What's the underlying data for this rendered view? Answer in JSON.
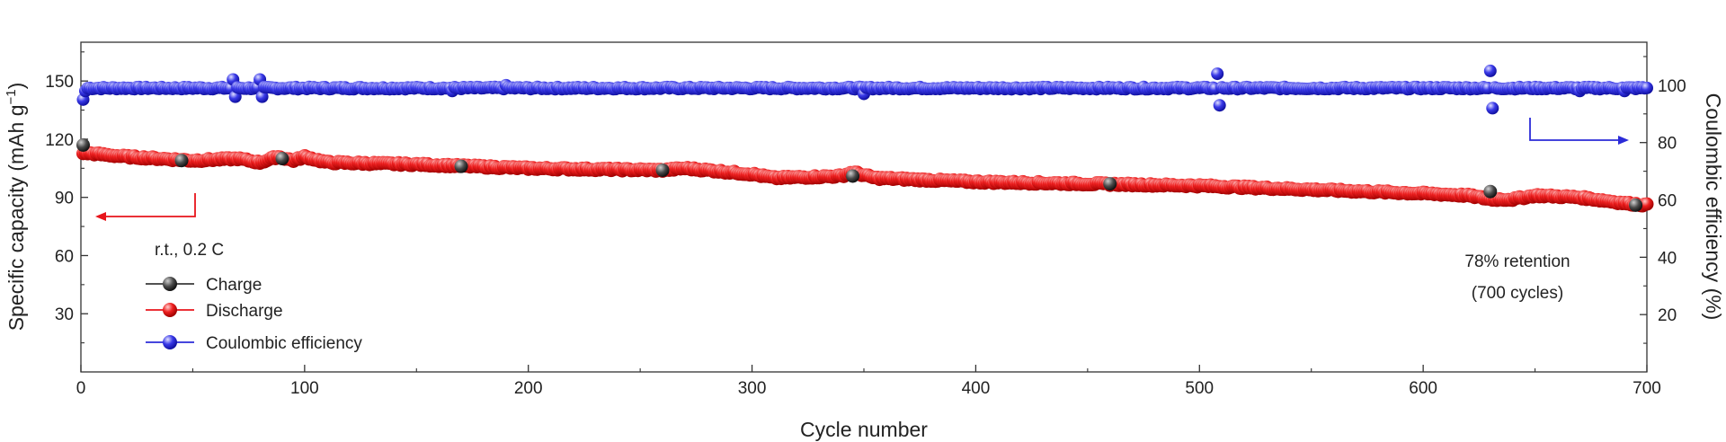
{
  "chart_data": {
    "type": "scatter",
    "xlabel": "Cycle number",
    "ylabel_left_main": "Specific capacity (mAh g",
    "ylabel_left_sup": "−1",
    "ylabel_left_end": ")",
    "ylabel_right": "Coulombic efficiency (%)",
    "xlim": [
      0,
      700
    ],
    "ylim_left": [
      0,
      170
    ],
    "ylim_right": [
      0,
      115
    ],
    "x_ticks": [
      0,
      100,
      200,
      300,
      400,
      500,
      600,
      700
    ],
    "x_tick_labels": [
      "0",
      "100",
      "200",
      "300",
      "400",
      "500",
      "600",
      "700"
    ],
    "y_left_ticks": [
      30,
      60,
      90,
      120,
      150
    ],
    "y_left_tick_labels": [
      "30",
      "60",
      "90",
      "120",
      "150"
    ],
    "y_right_ticks": [
      20,
      40,
      60,
      80,
      100
    ],
    "y_right_tick_labels": [
      "20",
      "40",
      "60",
      "80",
      "100"
    ],
    "condition_label": "r.t., 0.2 C",
    "retention_line1": "78% retention",
    "retention_line2": "(700 cycles)",
    "legend_position": "bottom-left",
    "series": [
      {
        "name": "Charge",
        "color": "#3a3a3a",
        "axis": "left",
        "points": [
          [
            1,
            117
          ],
          [
            45,
            109
          ],
          [
            90,
            110
          ],
          [
            170,
            106
          ],
          [
            260,
            104
          ],
          [
            345,
            101
          ],
          [
            460,
            97
          ],
          [
            630,
            93
          ],
          [
            695,
            86
          ]
        ]
      },
      {
        "name": "Discharge",
        "color": "#e8141b",
        "axis": "left",
        "anchors": [
          [
            1,
            113
          ],
          [
            20,
            111
          ],
          [
            50,
            109
          ],
          [
            70,
            110
          ],
          [
            80,
            108
          ],
          [
            88,
            111
          ],
          [
            95,
            109
          ],
          [
            100,
            111
          ],
          [
            110,
            108
          ],
          [
            150,
            107
          ],
          [
            200,
            105
          ],
          [
            260,
            104
          ],
          [
            270,
            105
          ],
          [
            290,
            103
          ],
          [
            300,
            102
          ],
          [
            310,
            100
          ],
          [
            340,
            101
          ],
          [
            345,
            103
          ],
          [
            355,
            100
          ],
          [
            400,
            98
          ],
          [
            450,
            97
          ],
          [
            500,
            96
          ],
          [
            550,
            94
          ],
          [
            600,
            92
          ],
          [
            620,
            91
          ],
          [
            630,
            89
          ],
          [
            640,
            89
          ],
          [
            650,
            91
          ],
          [
            670,
            90
          ],
          [
            690,
            87
          ],
          [
            700,
            86
          ]
        ]
      },
      {
        "name": "Coulombic efficiency",
        "color": "#2b2bd8",
        "axis": "right",
        "base": 99,
        "outliers": [
          [
            1,
            95
          ],
          [
            2,
            98
          ],
          [
            68,
            102
          ],
          [
            69,
            96
          ],
          [
            80,
            102
          ],
          [
            81,
            96
          ],
          [
            166,
            98
          ],
          [
            190,
            100
          ],
          [
            350,
            97
          ],
          [
            508,
            104
          ],
          [
            509,
            93
          ],
          [
            630,
            105
          ],
          [
            631,
            92
          ],
          [
            670,
            98
          ],
          [
            690,
            98
          ]
        ]
      }
    ]
  }
}
